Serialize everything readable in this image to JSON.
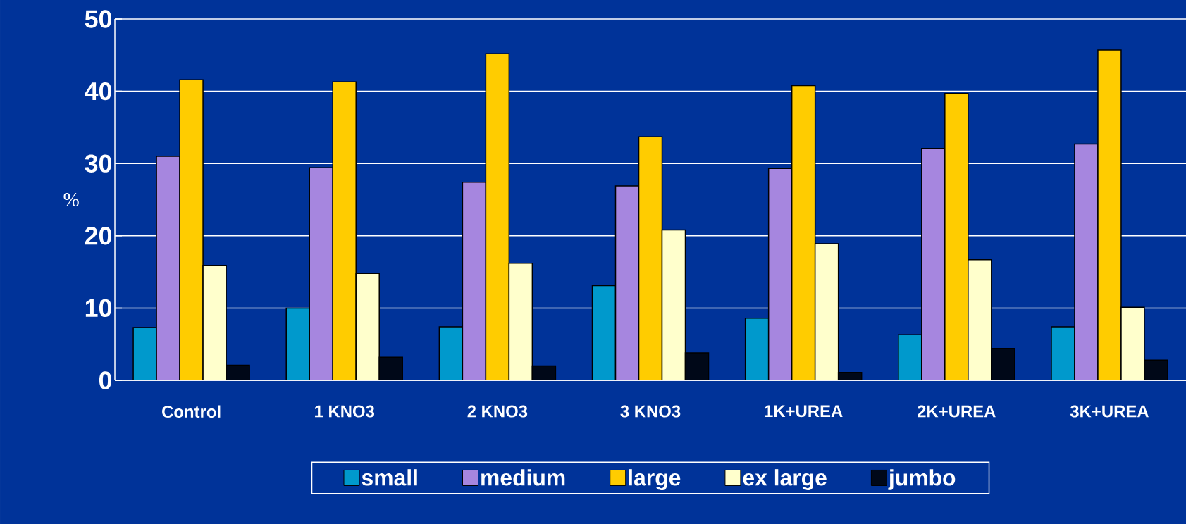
{
  "chart_data": {
    "type": "bar",
    "ylabel": "%",
    "categories": [
      "Control",
      "1 KNO3",
      "2 KNO3",
      "3 KNO3",
      "1K+UREA",
      "2K+UREA",
      "3K+UREA"
    ],
    "series": [
      {
        "name": "small",
        "color": "#0099cc",
        "values": [
          7.3,
          10.0,
          7.4,
          13.1,
          8.6,
          6.3,
          7.4
        ]
      },
      {
        "name": "medium",
        "color": "#a686df",
        "values": [
          31.0,
          29.4,
          27.4,
          26.9,
          29.3,
          32.1,
          32.7
        ]
      },
      {
        "name": "large",
        "color": "#ffcc00",
        "values": [
          41.6,
          41.3,
          45.2,
          33.7,
          40.8,
          39.7,
          45.7
        ]
      },
      {
        "name": "ex large",
        "color": "#ffffcc",
        "values": [
          15.9,
          14.8,
          16.2,
          20.8,
          18.9,
          16.7,
          10.1
        ]
      },
      {
        "name": "jumbo",
        "color": "#000818",
        "values": [
          2.1,
          3.2,
          2.0,
          3.8,
          1.1,
          4.4,
          2.8
        ]
      }
    ],
    "ylim": [
      0,
      50
    ],
    "yticks": [
      0,
      10,
      20,
      30,
      40,
      50
    ],
    "grid": "y",
    "legend": "bottom"
  }
}
